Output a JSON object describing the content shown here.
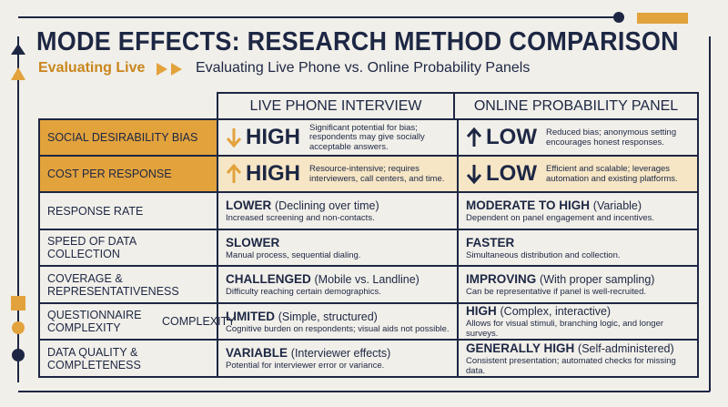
{
  "header": {
    "title": "MODE EFFECTS: RESEARCH METHOD COMPARISON",
    "subtitle_lead": "Evaluating Live",
    "subtitle": "Evaluating Live Phone vs. Online Probability Panels"
  },
  "columns": [
    "LIVE PHONE INTERVIEW",
    "ONLINE PROBABILITY PANEL"
  ],
  "rows": [
    {
      "label": "SOCIAL DESIRABILITY BIAS",
      "cells": [
        {
          "rating": "HIGH",
          "detail": "Significant potential for bias; respondents may give socially acceptable answers."
        },
        {
          "rating": "LOW",
          "detail": "Reduced bias; anonymous setting encourages honest responses."
        }
      ]
    },
    {
      "label": "COST PER RESPONSE",
      "cells": [
        {
          "rating": "HIGH",
          "detail": "Resource-intensive; requires interviewers, call centers, and time."
        },
        {
          "rating": "LOW",
          "detail": "Efficient and scalable; leverages automation and existing platforms."
        }
      ]
    },
    {
      "label": "RESPONSE RATE",
      "cells": [
        {
          "rating": "LOWER",
          "note": "(Declining over time)",
          "detail": "Increased screening and non-contacts."
        },
        {
          "rating": "MODERATE TO HIGH",
          "note": "(Variable)",
          "detail": "Dependent on panel engagement and incentives."
        }
      ]
    },
    {
      "label": "SPEED OF DATA COLLECTION",
      "cells": [
        {
          "rating": "SLOWER",
          "detail": "Manual process, sequential dialing."
        },
        {
          "rating": "FASTER",
          "detail": "Simultaneous distribution and collection."
        }
      ]
    },
    {
      "label": "COVERAGE & REPRESENTATIVENESS",
      "cells": [
        {
          "rating": "CHALLENGED",
          "note": "(Mobile vs. Landline)",
          "detail": "Difficulty reaching certain demographics."
        },
        {
          "rating": "IMPROVING",
          "note": "(With proper sampling)",
          "detail": "Can be representative if panel is well-recruited."
        }
      ]
    },
    {
      "label": "QUESTIONNAIRE COMPLEXITY",
      "label_extra": "COMPLEXITY",
      "cells": [
        {
          "rating": "LIMITED",
          "note": "(Simple, structured)",
          "detail": "Cognitive burden on respondents; visual aids not possible."
        },
        {
          "rating": "HIGH",
          "note": "(Complex, interactive)",
          "detail": "Allows for visual stimuli, branching logic, and longer surveys."
        }
      ]
    },
    {
      "label": "DATA QUALITY & COMPLETENESS",
      "cells": [
        {
          "rating": "VARIABLE",
          "note": "(Interviewer effects)",
          "detail": "Potential for interviewer error or variance."
        },
        {
          "rating": "GENERALLY HIGH",
          "note": "(Self-administered)",
          "detail": "Consistent presentation; automated checks for missing data."
        }
      ]
    }
  ]
}
